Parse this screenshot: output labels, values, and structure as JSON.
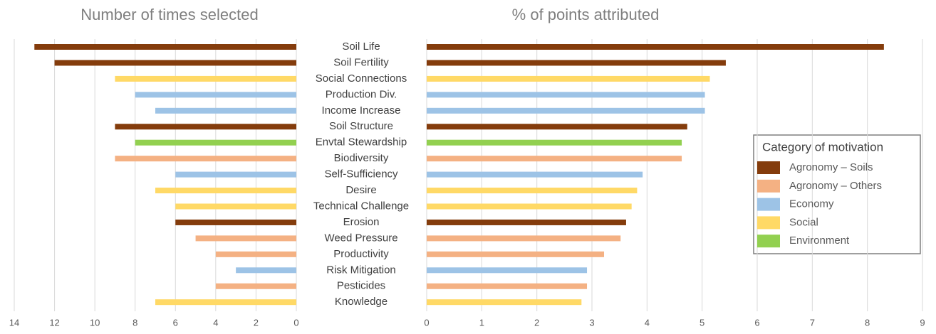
{
  "chart_data": {
    "type": "bar",
    "categories": [
      "Soil Life",
      "Soil Fertility",
      "Social Connections",
      "Production Div.",
      "Income Increase",
      "Soil Structure",
      "Envtal Stewardship",
      "Biodiversity",
      "Self-Sufficiency",
      "Desire",
      "Technical Challenge",
      "Erosion",
      "Weed Pressure",
      "Productivity",
      "Risk Mitigation",
      "Pesticides",
      "Knowledge"
    ],
    "colors": [
      "#843c0c",
      "#843c0c",
      "#ffd966",
      "#9dc3e6",
      "#9dc3e6",
      "#843c0c",
      "#92d050",
      "#f4b183",
      "#9dc3e6",
      "#ffd966",
      "#ffd966",
      "#843c0c",
      "#f4b183",
      "#f4b183",
      "#9dc3e6",
      "#f4b183",
      "#ffd966"
    ],
    "panels": [
      {
        "title": "Number of times selected",
        "values": [
          13,
          12,
          9,
          8,
          7,
          9,
          8,
          9,
          6,
          7,
          6,
          6,
          5,
          4,
          3,
          4,
          7
        ],
        "xlim": [
          14,
          0
        ],
        "xticks": [
          14,
          12,
          10,
          8,
          6,
          4,
          2,
          0
        ]
      },
      {
        "title": "% of points attributed",
        "values": [
          8.3,
          5.43,
          5.14,
          5.05,
          5.05,
          4.73,
          4.63,
          4.63,
          3.92,
          3.82,
          3.72,
          3.62,
          3.52,
          3.22,
          2.91,
          2.91,
          2.81
        ],
        "xlim": [
          0,
          9
        ],
        "xticks": [
          0,
          1,
          2,
          3,
          4,
          5,
          6,
          7,
          8,
          9
        ]
      }
    ],
    "grid": true,
    "legend": {
      "title": "Category of motivation",
      "position": "right",
      "items": [
        {
          "name": "Agronomy – Soils",
          "color": "#843c0c"
        },
        {
          "name": "Agronomy – Others",
          "color": "#f4b183"
        },
        {
          "name": "Economy",
          "color": "#9dc3e6"
        },
        {
          "name": "Social",
          "color": "#ffd966"
        },
        {
          "name": "Environment",
          "color": "#92d050"
        }
      ]
    }
  }
}
